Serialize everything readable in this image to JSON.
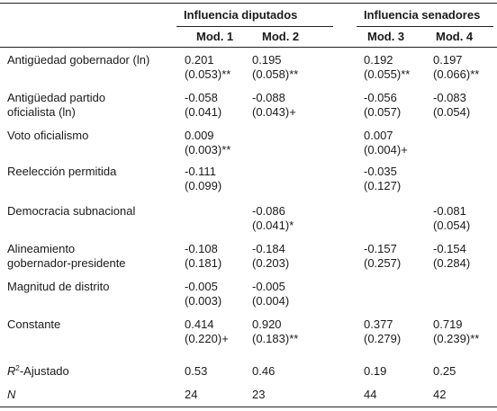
{
  "header": {
    "group_diputados": "Influencia diputados",
    "group_senadores": "Influencia senadores",
    "models": [
      "Mod. 1",
      "Mod. 2",
      "Mod. 3",
      "Mod. 4"
    ]
  },
  "rows": [
    {
      "label": [
        "Antigüedad gobernador (ln)"
      ],
      "cells": [
        [
          "0.201",
          "(0.053)**"
        ],
        [
          "0.195",
          "(0.058)**"
        ],
        [
          "0.192",
          "(0.055)**"
        ],
        [
          "0.197",
          "(0.066)**"
        ]
      ]
    },
    {
      "label": [
        "Antigüedad partido",
        "oficialista (ln)"
      ],
      "cells": [
        [
          "-0.058",
          "(0.041)"
        ],
        [
          "-0.088",
          "(0.043)+"
        ],
        [
          "-0.056",
          "(0.057)"
        ],
        [
          "-0.083",
          "(0.054)"
        ]
      ]
    },
    {
      "label": [
        "Voto oficialismo"
      ],
      "cells": [
        [
          "0.009",
          "(0.003)**"
        ],
        [],
        [
          "0.007",
          "(0.004)+"
        ],
        []
      ]
    },
    {
      "label": [
        "Reelección permitida"
      ],
      "cells": [
        [
          "-0.111",
          "(0.099)"
        ],
        [],
        [
          "-0.035",
          "(0.127)"
        ],
        []
      ]
    },
    {
      "label": [
        "Democracia subnacional"
      ],
      "cells": [
        [],
        [
          "-0.086",
          "(0.041)*"
        ],
        [],
        [
          "-0.081",
          "(0.054)"
        ]
      ]
    },
    {
      "label": [
        "Alineamiento",
        "gobernador-presidente"
      ],
      "cells": [
        [
          "-0.108",
          "(0.181)"
        ],
        [
          "-0.184",
          "(0.203)"
        ],
        [
          "-0.157",
          "(0.257)"
        ],
        [
          "-0.154",
          "(0.284)"
        ]
      ]
    },
    {
      "label": [
        "Magnitud de distrito"
      ],
      "cells": [
        [
          "-0.005",
          "(0.003)"
        ],
        [
          "-0.005",
          "(0.004)"
        ],
        [],
        []
      ]
    },
    {
      "label": [
        "Constante"
      ],
      "cells": [
        [
          "0.414",
          "(0.220)+"
        ],
        [
          "0.920",
          "(0.183)**"
        ],
        [
          "0.377",
          "(0.279)"
        ],
        [
          "0.719",
          "(0.239)**"
        ]
      ]
    }
  ],
  "r2": {
    "label_main": "R",
    "label_sup": "2",
    "label_rest": "-Ajustado",
    "values": [
      "0.53",
      "0.46",
      "0.19",
      "0.25"
    ]
  },
  "n": {
    "label": "N",
    "values": [
      "24",
      "23",
      "44",
      "42"
    ]
  }
}
